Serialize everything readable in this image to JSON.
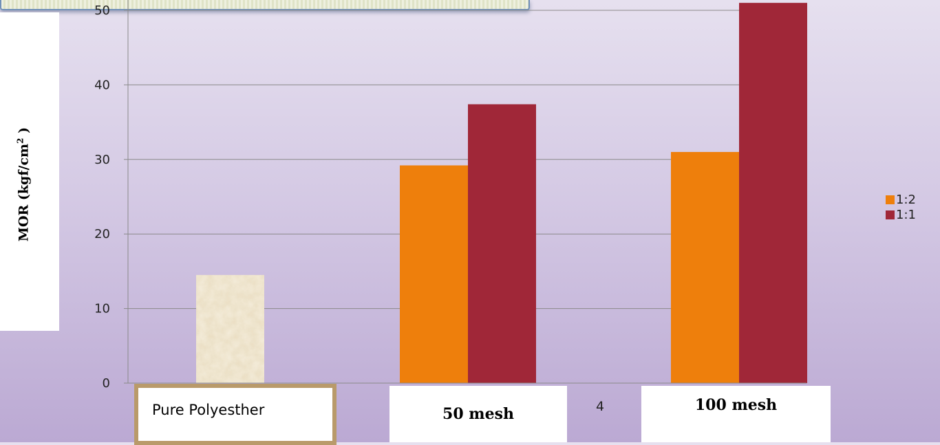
{
  "chart_data": {
    "type": "bar",
    "title": "",
    "ylabel": "MOR (kgf/cm",
    "ylabel_sup": "2",
    "ylabel_close": " )",
    "ylim": [
      0,
      52
    ],
    "yticks": [
      0,
      10,
      20,
      30,
      40,
      50
    ],
    "grid": true,
    "categories": [
      "Pure Polyesther",
      "50 mesh",
      "100 mesh"
    ],
    "extra_label": "4",
    "series": [
      {
        "name": "1:2",
        "color": "#ee7f0c",
        "values": [
          14.5,
          29.2,
          31.0
        ]
      },
      {
        "name": "1:1",
        "color": "#a02738",
        "values": [
          null,
          37.4,
          51.0
        ]
      }
    ],
    "pure_polyester_fill": "parchment texture",
    "legend_position": "right"
  }
}
